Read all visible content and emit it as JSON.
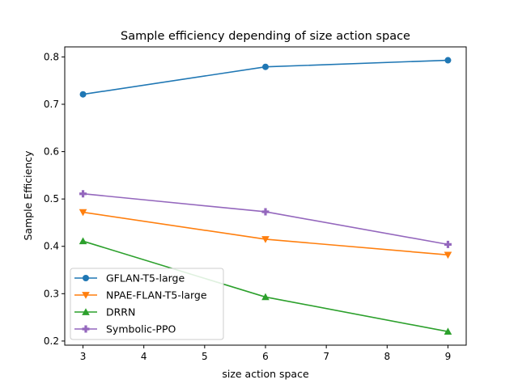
{
  "chart_data": {
    "type": "line",
    "title": "Sample efficiency depending of size action space",
    "xlabel": "size action space",
    "ylabel": "Sample Efficiency",
    "x": [
      3,
      6,
      9
    ],
    "xlim": [
      2.7,
      9.3
    ],
    "ylim": [
      0.1913,
      0.8212
    ],
    "xticks": [
      3,
      4,
      5,
      6,
      7,
      8,
      9
    ],
    "yticks": [
      0.2,
      0.3,
      0.4,
      0.5,
      0.6,
      0.7,
      0.8
    ],
    "grid": false,
    "legend_position": "lower-left",
    "series": [
      {
        "name": "GFLAN-T5-large",
        "values": [
          0.721,
          0.779,
          0.793
        ],
        "color": "#1f77b4",
        "marker": "circle"
      },
      {
        "name": "NPAE-FLAN-T5-large",
        "values": [
          0.472,
          0.415,
          0.382
        ],
        "color": "#ff7f0e",
        "marker": "triangle-down"
      },
      {
        "name": "DRRN",
        "values": [
          0.411,
          0.293,
          0.22
        ],
        "color": "#2ca02c",
        "marker": "triangle-up"
      },
      {
        "name": "Symbolic-PPO",
        "values": [
          0.511,
          0.473,
          0.404
        ],
        "color": "#9467bd",
        "marker": "plus"
      }
    ]
  }
}
